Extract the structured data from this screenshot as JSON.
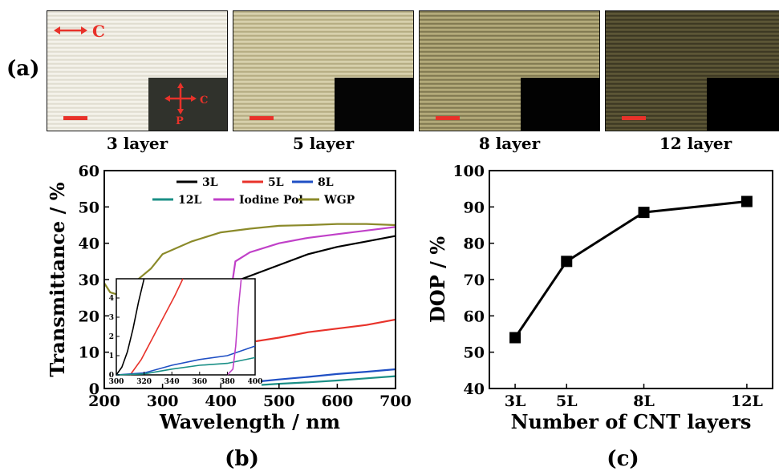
{
  "panel_a": {
    "label": "(a)",
    "images": [
      {
        "caption": "3 layer",
        "tone": "#f4f2ea",
        "stripe": "#d8d4c6",
        "inset_tone": "#30322c"
      },
      {
        "caption": "5 layer",
        "tone": "#d7d0ac",
        "stripe": "#a79e72",
        "inset_tone": "#050505"
      },
      {
        "caption": "8 layer",
        "tone": "#b3aa7a",
        "stripe": "#6c6440",
        "inset_tone": "#020202"
      },
      {
        "caption": "12 layer",
        "tone": "#5c5636",
        "stripe": "#2e2b1a",
        "inset_tone": "#000000"
      }
    ],
    "arrow_label": "C",
    "cross_labels": {
      "c": "C",
      "p": "P"
    },
    "accent_color": "#e8322a"
  },
  "panel_b_label": "(b)",
  "panel_c_label": "(c)",
  "chart_data": [
    {
      "panel": "(b)",
      "type": "line",
      "xlabel": "Wavelength / nm",
      "ylabel": "Transmittance / %",
      "xlim": [
        200,
        700
      ],
      "ylim": [
        0,
        60
      ],
      "xticks": [
        200,
        300,
        400,
        500,
        600,
        700
      ],
      "yticks": [
        0,
        10,
        20,
        30,
        40,
        50,
        60
      ],
      "legend_position": "top",
      "series": [
        {
          "name": "3L",
          "color": "#000000",
          "x": [
            400,
            450,
            500,
            550,
            600,
            650,
            700
          ],
          "y": [
            28,
            31,
            34,
            37,
            39,
            40.5,
            42
          ]
        },
        {
          "name": "5L",
          "color": "#e8322a",
          "x": [
            460,
            500,
            550,
            600,
            650,
            700
          ],
          "y": [
            13,
            14,
            15.5,
            16.5,
            17.5,
            19
          ]
        },
        {
          "name": "8L",
          "color": "#1f4fc4",
          "x": [
            470,
            500,
            550,
            600,
            650,
            700
          ],
          "y": [
            2,
            2.5,
            3.2,
            4,
            4.6,
            5.3
          ]
        },
        {
          "name": "12L",
          "color": "#1a8f86",
          "x": [
            470,
            500,
            550,
            600,
            650,
            700
          ],
          "y": [
            1,
            1.3,
            1.7,
            2.2,
            2.8,
            3.4
          ]
        },
        {
          "name": "Iodine Pol",
          "color": "#c040c8",
          "x": [
            415,
            425,
            450,
            500,
            550,
            600,
            650,
            700
          ],
          "y": [
            24,
            35,
            37.5,
            40,
            41.5,
            42.5,
            43.5,
            44.5
          ]
        },
        {
          "name": "WGP",
          "color": "#8b8a2a",
          "x": [
            200,
            210,
            230,
            250,
            280,
            300,
            350,
            400,
            450,
            500,
            550,
            600,
            650,
            700
          ],
          "y": [
            29,
            26.5,
            25.5,
            29,
            33,
            37,
            40.5,
            43,
            44,
            44.8,
            45,
            45.3,
            45.3,
            45
          ]
        }
      ],
      "inset": {
        "xlim": [
          300,
          400
        ],
        "ylim": [
          0,
          5
        ],
        "xticks": [
          300,
          320,
          340,
          360,
          380,
          400
        ],
        "yticks": [
          0,
          1,
          2,
          3,
          4
        ],
        "series": [
          {
            "name": "3L",
            "color": "#000000",
            "x": [
              300,
              304,
              308,
              312,
              316,
              320
            ],
            "y": [
              0,
              0.4,
              1.2,
              2.4,
              3.8,
              5
            ]
          },
          {
            "name": "5L",
            "color": "#e8322a",
            "x": [
              310,
              318,
              326,
              334,
              342,
              348
            ],
            "y": [
              0,
              0.8,
              1.9,
              3.0,
              4.1,
              5
            ]
          },
          {
            "name": "8L",
            "color": "#1f4fc4",
            "x": [
              300,
              320,
              340,
              360,
              380,
              400
            ],
            "y": [
              0,
              0.1,
              0.5,
              0.8,
              1.0,
              1.5
            ]
          },
          {
            "name": "12L",
            "color": "#1a8f86",
            "x": [
              300,
              320,
              340,
              360,
              380,
              400
            ],
            "y": [
              0,
              0.05,
              0.3,
              0.5,
              0.6,
              0.9
            ]
          },
          {
            "name": "Iodine Pol",
            "color": "#c040c8",
            "x": [
              380,
              384,
              386,
              388,
              390
            ],
            "y": [
              0,
              0.3,
              1.5,
              3.5,
              5
            ]
          }
        ]
      }
    },
    {
      "panel": "(c)",
      "type": "line",
      "xlabel": "Number of CNT layers",
      "ylabel": "DOP / %",
      "categories": [
        "3L",
        "5L",
        "8L",
        "12L"
      ],
      "x": [
        3,
        5,
        8,
        12
      ],
      "values": [
        54,
        75,
        88.5,
        91.5
      ],
      "xlim": [
        2,
        13
      ],
      "ylim": [
        40,
        100
      ],
      "yticks": [
        40,
        50,
        60,
        70,
        80,
        90,
        100
      ],
      "color": "#000000"
    }
  ]
}
